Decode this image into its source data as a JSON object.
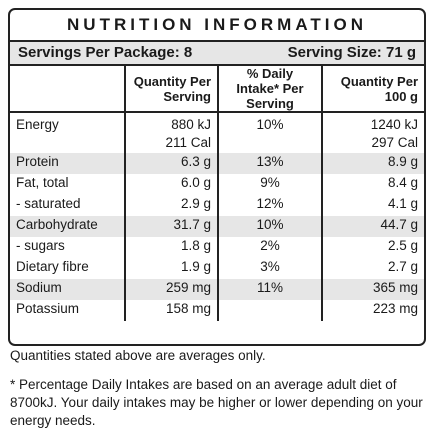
{
  "title": "NUTRITION INFORMATION",
  "servings": {
    "per_package": "Servings Per Package: 8",
    "size": "Serving Size: 71 g"
  },
  "headers": {
    "col1": "",
    "col2": "Quantity Per Serving",
    "col3": "% Daily Intake* Per Serving",
    "col4": "Quantity Per 100 g"
  },
  "rows": [
    {
      "name": "Energy",
      "serving": "880 kJ",
      "serving2": "211 Cal",
      "di": "10%",
      "per100": "1240 kJ",
      "per100_2": "297 Cal"
    },
    {
      "name": "Protein",
      "serving": "6.3 g",
      "di": "13%",
      "per100": "8.9 g"
    },
    {
      "name": "Fat, total",
      "serving": "6.0 g",
      "di": "9%",
      "per100": "8.4 g"
    },
    {
      "name": "- saturated",
      "serving": "2.9 g",
      "di": "12%",
      "per100": "4.1 g"
    },
    {
      "name": "Carbohydrate",
      "serving": "31.7 g",
      "di": "10%",
      "per100": "44.7 g"
    },
    {
      "name": "- sugars",
      "serving": "1.8 g",
      "di": "2%",
      "per100": "2.5 g"
    },
    {
      "name": "Dietary fibre",
      "serving": "1.9 g",
      "di": "3%",
      "per100": "2.7 g"
    },
    {
      "name": "Sodium",
      "serving": "259 mg",
      "di": "11%",
      "per100": "365 mg"
    },
    {
      "name": "Potassium",
      "serving": "158 mg",
      "di": "",
      "per100": "223 mg"
    }
  ],
  "footnotes": {
    "averages": "Quantities stated above are averages only.",
    "daily_intake": "* Percentage Daily Intakes are based on an average adult diet of 8700kJ. Your daily intakes may be higher or lower depending on your energy needs."
  }
}
